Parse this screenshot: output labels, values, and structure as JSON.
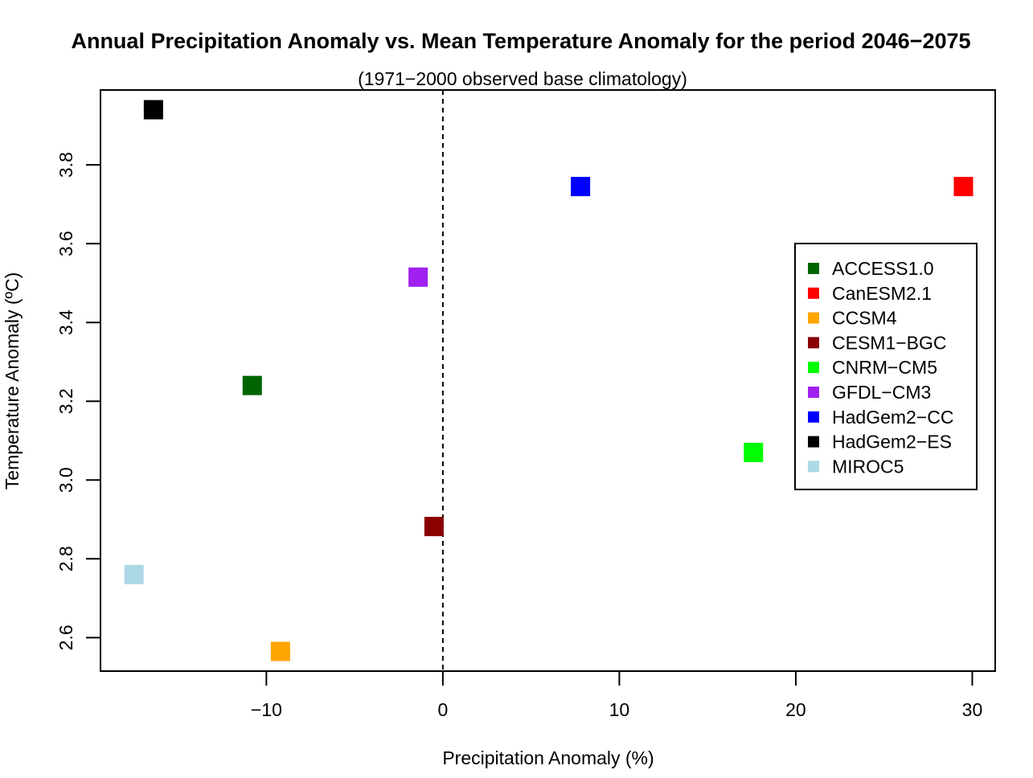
{
  "chart_data": {
    "type": "scatter",
    "title": "Annual Precipitation Anomaly vs. Mean Temperature Anomaly for the period 2046−2075",
    "subtitle": "(1971−2000 observed base climatology)",
    "xlabel": "Precipitation Anomaly (%)",
    "ylabel": "Temperature Anomaly (ºC)",
    "xlim": [
      -19.4,
      31.3
    ],
    "ylim": [
      2.515,
      3.99
    ],
    "xticks": [
      -10,
      0,
      10,
      20,
      30
    ],
    "xtick_labels": [
      "−10",
      "0",
      "10",
      "20",
      "30"
    ],
    "yticks": [
      2.6,
      2.8,
      3.0,
      3.2,
      3.4,
      3.6,
      3.8
    ],
    "ytick_labels": [
      "2.6",
      "2.8",
      "3.0",
      "3.2",
      "3.4",
      "3.6",
      "3.8"
    ],
    "reference_line": {
      "x": 0,
      "style": "dashed",
      "color": "#000000"
    },
    "grid": false,
    "legend_position": "right",
    "series": [
      {
        "name": "ACCESS1.0",
        "color": "#006400",
        "x": -10.8,
        "y": 3.24
      },
      {
        "name": "CanESM2.1",
        "color": "#ff0000",
        "x": 29.5,
        "y": 3.745
      },
      {
        "name": "CCSM4",
        "color": "#ffa500",
        "x": -9.2,
        "y": 2.565
      },
      {
        "name": "CESM1−BGC",
        "color": "#8b0000",
        "x": -0.5,
        "y": 2.882
      },
      {
        "name": "CNRM−CM5",
        "color": "#00ff00",
        "x": 17.6,
        "y": 3.07
      },
      {
        "name": "GFDL−CM3",
        "color": "#a020f0",
        "x": -1.4,
        "y": 3.515
      },
      {
        "name": "HadGem2−CC",
        "color": "#0000ff",
        "x": 7.8,
        "y": 3.745
      },
      {
        "name": "HadGem2−ES",
        "color": "#000000",
        "x": -16.4,
        "y": 3.94
      },
      {
        "name": "MIROC5",
        "color": "#add8e6",
        "x": -17.5,
        "y": 2.76
      }
    ]
  }
}
